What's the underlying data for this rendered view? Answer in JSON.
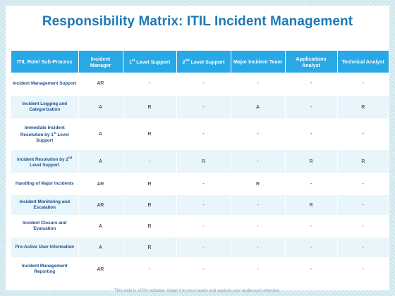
{
  "title": "Responsibility Matrix: ITIL Incident Management",
  "columns": [
    {
      "text": "ITIL  Role/  Sub-Process"
    },
    {
      "text": "Incident Manager"
    },
    {
      "pre": "1",
      "sup": "st",
      "post": " Level Support"
    },
    {
      "pre": "2",
      "sup": "nd",
      "post": " Level Support"
    },
    {
      "text": "Major Incident Team"
    },
    {
      "text": "Applications Analyst"
    },
    {
      "text": "Technical Analyst"
    }
  ],
  "rows": [
    {
      "role": {
        "text": "Incident Management Support"
      },
      "cells": [
        "AR",
        "-",
        "-",
        "-",
        "-",
        "-"
      ]
    },
    {
      "role": {
        "text": "Incident Logging and Categorization"
      },
      "cells": [
        "A",
        "R",
        "-",
        "A",
        "-",
        "R"
      ]
    },
    {
      "role": {
        "pre": "Immediate Incident Resolution by 1",
        "sup": "st",
        "post": " Level Support"
      },
      "cells": [
        "A",
        "R",
        "-",
        "-",
        "-",
        "-"
      ]
    },
    {
      "role": {
        "pre": "Incident Resolution by 2",
        "sup": "nd",
        "post": " Level Support"
      },
      "cells": [
        "A",
        "-",
        "R",
        "-",
        "R",
        "R"
      ]
    },
    {
      "role": {
        "text": "Handling of Major Incidents"
      },
      "cells": [
        "AR",
        "R",
        "-",
        "R",
        "-",
        "-"
      ]
    },
    {
      "role": {
        "text": "Incident Monitoring and Escalation"
      },
      "cells": [
        "AR",
        "R",
        "-",
        "-",
        "R",
        "-"
      ]
    },
    {
      "role": {
        "text": "Incident Closure and Evaluation"
      },
      "cells": [
        "A",
        "R",
        "-",
        "-",
        "-",
        "-"
      ]
    },
    {
      "role": {
        "text": "Pro-Active User Information"
      },
      "cells": [
        "A",
        "R",
        "-",
        "-",
        "-",
        "-"
      ]
    },
    {
      "role": {
        "text": "Incident Management Reporting"
      },
      "cells": [
        "AR",
        "-",
        "-",
        "-",
        "-",
        "-"
      ]
    }
  ],
  "footer": "This slide is 100% editable. Adapt it to your needs and capture your audience's attention."
}
